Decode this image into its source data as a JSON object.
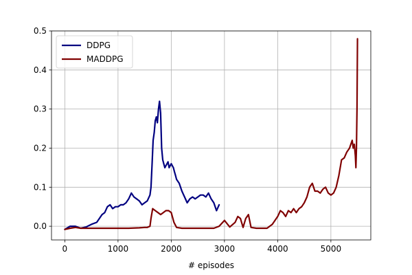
{
  "chart_data": {
    "type": "line",
    "title": "",
    "xlabel": "# episodes",
    "ylabel": "",
    "xlim": [
      -250,
      5750
    ],
    "ylim": [
      -0.035,
      0.5
    ],
    "xticks": [
      0,
      1000,
      2000,
      3000,
      4000,
      5000
    ],
    "yticks": [
      0.0,
      0.1,
      0.2,
      0.3,
      0.4,
      0.5
    ],
    "xtick_labels": [
      "0",
      "1000",
      "2000",
      "3000",
      "4000",
      "5000"
    ],
    "ytick_labels": [
      "0.0",
      "0.1",
      "0.2",
      "0.3",
      "0.4",
      "0.5"
    ],
    "grid": true,
    "legend_position": "top-left",
    "series": [
      {
        "name": "DDPG",
        "color": "#000080",
        "x": [
          0,
          100,
          200,
          300,
          400,
          500,
          600,
          700,
          750,
          800,
          850,
          900,
          950,
          1000,
          1050,
          1100,
          1150,
          1200,
          1250,
          1300,
          1350,
          1400,
          1450,
          1500,
          1550,
          1600,
          1620,
          1640,
          1660,
          1680,
          1700,
          1720,
          1740,
          1760,
          1780,
          1800,
          1820,
          1840,
          1860,
          1880,
          1900,
          1920,
          1940,
          1960,
          1980,
          2000,
          2020,
          2040,
          2060,
          2080,
          2100,
          2150,
          2200,
          2250,
          2300,
          2350,
          2400,
          2450,
          2500,
          2550,
          2600,
          2650,
          2700,
          2750,
          2800,
          2850,
          2900
        ],
        "values": [
          -0.008,
          0.0,
          0.0,
          -0.005,
          -0.002,
          0.005,
          0.01,
          0.03,
          0.035,
          0.05,
          0.055,
          0.045,
          0.05,
          0.05,
          0.055,
          0.055,
          0.06,
          0.07,
          0.085,
          0.075,
          0.07,
          0.065,
          0.055,
          0.06,
          0.065,
          0.08,
          0.1,
          0.16,
          0.22,
          0.24,
          0.27,
          0.28,
          0.265,
          0.3,
          0.32,
          0.29,
          0.2,
          0.17,
          0.16,
          0.15,
          0.155,
          0.16,
          0.165,
          0.15,
          0.155,
          0.16,
          0.155,
          0.15,
          0.14,
          0.13,
          0.12,
          0.11,
          0.09,
          0.075,
          0.06,
          0.07,
          0.075,
          0.07,
          0.075,
          0.08,
          0.08,
          0.075,
          0.085,
          0.07,
          0.06,
          0.04,
          0.055
        ]
      },
      {
        "name": "MADDPG",
        "color": "#800000",
        "x": [
          0,
          100,
          200,
          300,
          500,
          800,
          1000,
          1200,
          1400,
          1500,
          1550,
          1600,
          1620,
          1650,
          1700,
          1750,
          1800,
          1850,
          1900,
          1950,
          2000,
          2050,
          2100,
          2200,
          2400,
          2600,
          2800,
          2900,
          3000,
          3100,
          3200,
          3250,
          3300,
          3350,
          3400,
          3450,
          3500,
          3600,
          3700,
          3800,
          3900,
          4000,
          4050,
          4100,
          4150,
          4200,
          4250,
          4300,
          4350,
          4400,
          4450,
          4500,
          4550,
          4600,
          4650,
          4700,
          4750,
          4800,
          4850,
          4900,
          4950,
          5000,
          5050,
          5100,
          5150,
          5200,
          5250,
          5300,
          5350,
          5400,
          5420,
          5440,
          5460,
          5470,
          5480,
          5490,
          5500
        ],
        "values": [
          -0.008,
          -0.005,
          -0.003,
          -0.005,
          -0.005,
          -0.005,
          -0.005,
          -0.005,
          -0.004,
          -0.003,
          -0.003,
          0.0,
          0.02,
          0.045,
          0.04,
          0.035,
          0.03,
          0.035,
          0.04,
          0.04,
          0.035,
          0.01,
          -0.003,
          -0.005,
          -0.005,
          -0.005,
          -0.005,
          0.0,
          0.015,
          -0.002,
          0.01,
          0.025,
          0.02,
          -0.003,
          0.02,
          0.03,
          -0.003,
          -0.005,
          -0.005,
          -0.005,
          0.005,
          0.025,
          0.04,
          0.035,
          0.025,
          0.04,
          0.035,
          0.045,
          0.035,
          0.045,
          0.05,
          0.06,
          0.075,
          0.1,
          0.11,
          0.09,
          0.09,
          0.085,
          0.095,
          0.1,
          0.085,
          0.08,
          0.085,
          0.1,
          0.13,
          0.17,
          0.175,
          0.19,
          0.2,
          0.22,
          0.2,
          0.21,
          0.18,
          0.15,
          0.2,
          0.3,
          0.48
        ]
      }
    ]
  }
}
